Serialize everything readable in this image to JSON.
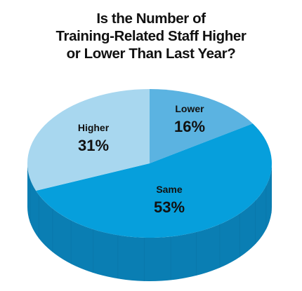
{
  "chart_data": {
    "type": "pie",
    "title": [
      "Is the Number of",
      "Training-Related Staff Higher",
      "or Lower Than Last Year?"
    ],
    "slices": [
      {
        "label": "Lower",
        "value": 16,
        "display": "16%",
        "color": "#5bb3e1"
      },
      {
        "label": "Same",
        "value": 53,
        "display": "53%",
        "color": "#069fdc"
      },
      {
        "label": "Higher",
        "value": 31,
        "display": "31%",
        "color": "#a8d7ef"
      }
    ],
    "side_color": "#0a7eb3",
    "side_shade_color": "#086d9e"
  }
}
